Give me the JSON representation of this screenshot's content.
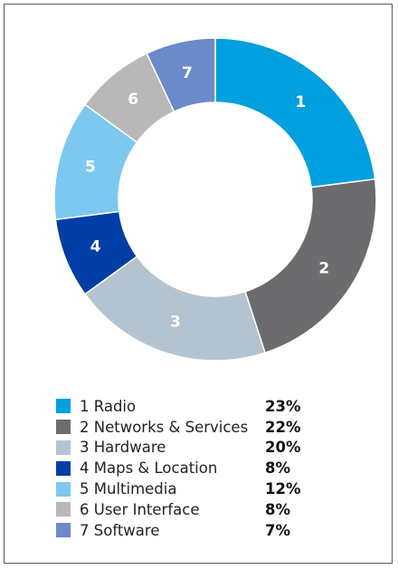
{
  "chart_data": {
    "type": "pie",
    "title": "",
    "categories": [
      "Radio",
      "Networks & Services",
      "Hardware",
      "Maps & Location",
      "Multimedia",
      "User Interface",
      "Software"
    ],
    "slices": [
      {
        "number": "1",
        "name": "Radio",
        "value": 23,
        "value_label": "23%",
        "color": "#009fdf"
      },
      {
        "number": "2",
        "name": "Networks & Services",
        "value": 22,
        "value_label": "22%",
        "color": "#6c6c6e"
      },
      {
        "number": "3",
        "name": "Hardware",
        "value": 20,
        "value_label": "20%",
        "color": "#b4c3d0"
      },
      {
        "number": "4",
        "name": "Maps & Location",
        "value": 8,
        "value_label": "8%",
        "color": "#003da5"
      },
      {
        "number": "5",
        "name": "Multimedia",
        "value": 12,
        "value_label": "12%",
        "color": "#7cc8f0"
      },
      {
        "number": "6",
        "name": "User Interface",
        "value": 8,
        "value_label": "8%",
        "color": "#b8b8b8"
      },
      {
        "number": "7",
        "name": "Software",
        "value": 7,
        "value_label": "7%",
        "color": "#6a8ac9"
      }
    ],
    "donut": true,
    "start_angle": "12 o'clock",
    "direction": "clockwise",
    "legend_position": "bottom"
  }
}
